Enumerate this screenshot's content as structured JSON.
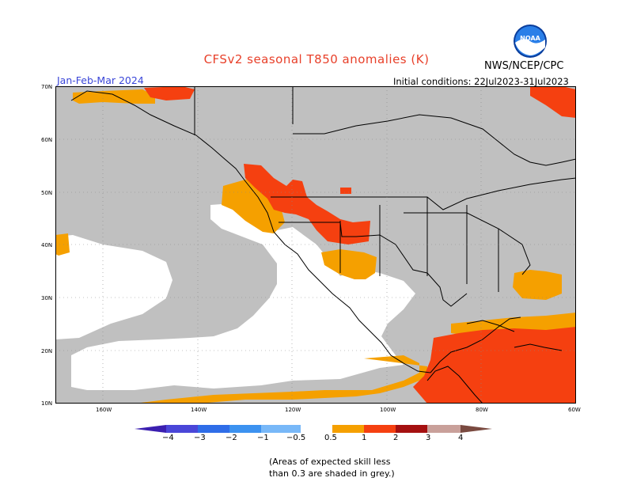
{
  "title": "CFSv2 seasonal T850 anomalies (K)",
  "period": "Jan-Feb-Mar 2024",
  "agency": "NWS/NCEP/CPC",
  "initial_conditions": "Initial conditions: 22Jul2023-31Jul2023",
  "logo": {
    "icon": "noaa-logo",
    "text": "NOAA"
  },
  "lat_labels": [
    "70N",
    "60N",
    "50N",
    "40N",
    "30N",
    "20N",
    "10N"
  ],
  "lon_labels": [
    "160W",
    "140W",
    "120W",
    "100W",
    "80W",
    "60W"
  ],
  "colorbar": {
    "labels": [
      "−4",
      "−3",
      "−2",
      "−1",
      "−0.5",
      "0.5",
      "1",
      "2",
      "3",
      "4"
    ],
    "colors": [
      "#3b1fb0",
      "#4a46d8",
      "#2f6de8",
      "#3c92f0",
      "#78b8f8",
      "#ffffff",
      "#f5a000",
      "#f54010",
      "#a51010",
      "#c9a09a",
      "#7a4a40"
    ]
  },
  "map_colors": {
    "grey": "#c0c0c0",
    "orange": "#f5a000",
    "red": "#f54010",
    "white": "#ffffff"
  },
  "footnote": [
    "(Areas of expected skill less",
    "than 0.3 are shaded in grey.)"
  ]
}
